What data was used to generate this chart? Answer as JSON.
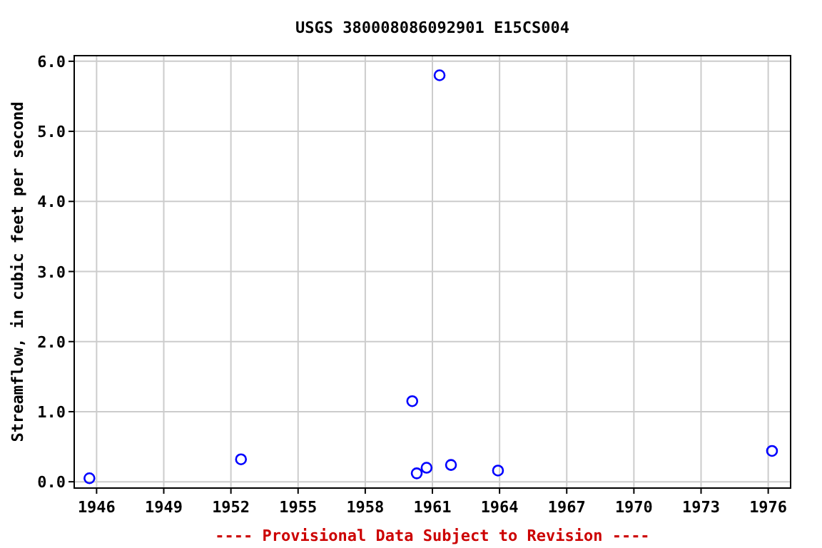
{
  "chart_data": {
    "type": "scatter",
    "title": "USGS 380008086092901 E15CS004",
    "ylabel": "Streamflow, in cubic feet per second",
    "x": [
      1945.68,
      1952.45,
      1960.1,
      1960.3,
      1960.74,
      1961.32,
      1961.83,
      1963.93,
      1976.17
    ],
    "series": [
      {
        "color": "#0000ff",
        "values": [
          0.05,
          0.32,
          1.15,
          0.12,
          0.2,
          5.8,
          0.24,
          0.16,
          0.44
        ]
      }
    ],
    "xlim": [
      1945,
      1977
    ],
    "xticks": [
      1946,
      1949,
      1952,
      1955,
      1958,
      1961,
      1964,
      1967,
      1970,
      1973,
      1976
    ],
    "ylim": [
      -0.09,
      6.08
    ],
    "yticks": [
      {
        "value": 0,
        "label": "0.0"
      },
      {
        "value": 1,
        "label": "1.0"
      },
      {
        "value": 2,
        "label": "2.0"
      },
      {
        "value": 3,
        "label": "3.0"
      },
      {
        "value": 4,
        "label": "4.0"
      },
      {
        "value": 5,
        "label": "5.0"
      },
      {
        "value": 6,
        "label": "6.0"
      }
    ],
    "grid": true,
    "marker": "circle",
    "annotations": [
      "---- Provisional Data Subject to Revision ----"
    ]
  }
}
